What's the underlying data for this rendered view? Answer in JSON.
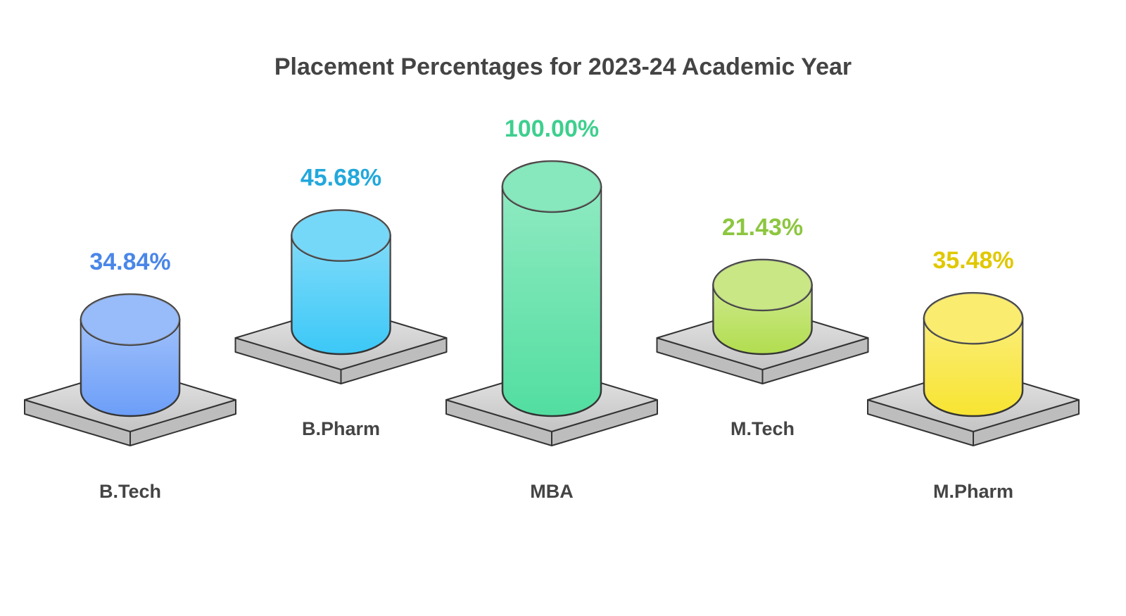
{
  "chart_data": {
    "type": "cylinder",
    "title": "Placement Percentages for 2023-24 Academic Year",
    "categories": [
      "B.Tech",
      "B.Pharm",
      "MBA",
      "M.Tech",
      "M.Pharm"
    ],
    "values": [
      34.84,
      45.68,
      100,
      21.43,
      35.48
    ],
    "value_labels": [
      "34.84%",
      "45.68%",
      "100.00%",
      "21.43%",
      "35.48%"
    ],
    "colors": [
      "#6c9ef8",
      "#3cc8f7",
      "#52dea0",
      "#b2dd4f",
      "#f8e431"
    ],
    "value_label_colors": [
      "#4a86e8",
      "#22a8dc",
      "#3ecf8e",
      "#8cc63f",
      "#e0c800"
    ]
  }
}
